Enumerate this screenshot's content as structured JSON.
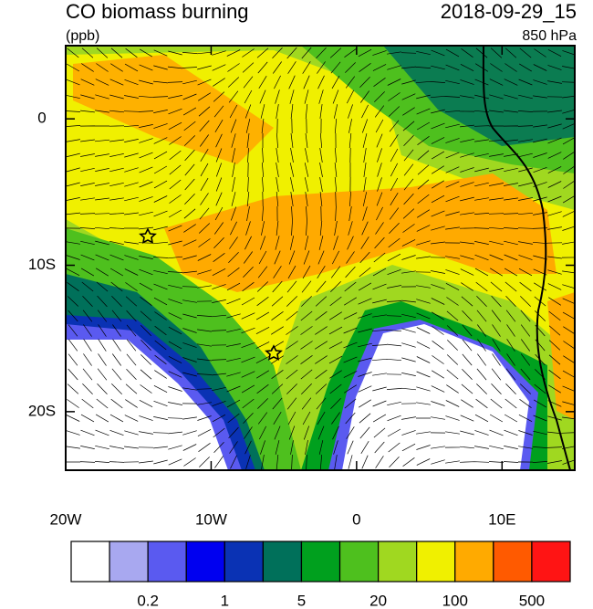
{
  "header": {
    "title": "CO biomass burning",
    "units": "(ppb)",
    "time": "2018-09-29_15",
    "level": "850 hPa"
  },
  "map": {
    "lonlim": [
      -20,
      15
    ],
    "latlim": [
      -24,
      5
    ],
    "xticks": [
      {
        "value": -20,
        "label": "20W"
      },
      {
        "value": -10,
        "label": "10W"
      },
      0,
      {
        "value": 10,
        "label": "10E"
      }
    ],
    "yticks": [
      0,
      {
        "value": -10,
        "label": "10S"
      },
      {
        "value": -20,
        "label": "20S"
      }
    ]
  },
  "colorbar": {
    "colors": [
      "#ffffff",
      "#a8a8f0",
      "#5a5af0",
      "#0000f0",
      "#0a32b4",
      "#00705a",
      "#00a01e",
      "#4ec01e",
      "#a0d820",
      "#f0f000",
      "#ffaa00",
      "#ff5a00",
      "#ff1414"
    ],
    "labels": [
      {
        "edge": 2,
        "label": "0.2"
      },
      {
        "edge": 4,
        "label": "1"
      },
      {
        "edge": 6,
        "label": "5"
      },
      {
        "edge": 8,
        "label": "20"
      },
      {
        "edge": 10,
        "label": "100"
      },
      {
        "edge": 12,
        "label": "500"
      }
    ]
  }
}
